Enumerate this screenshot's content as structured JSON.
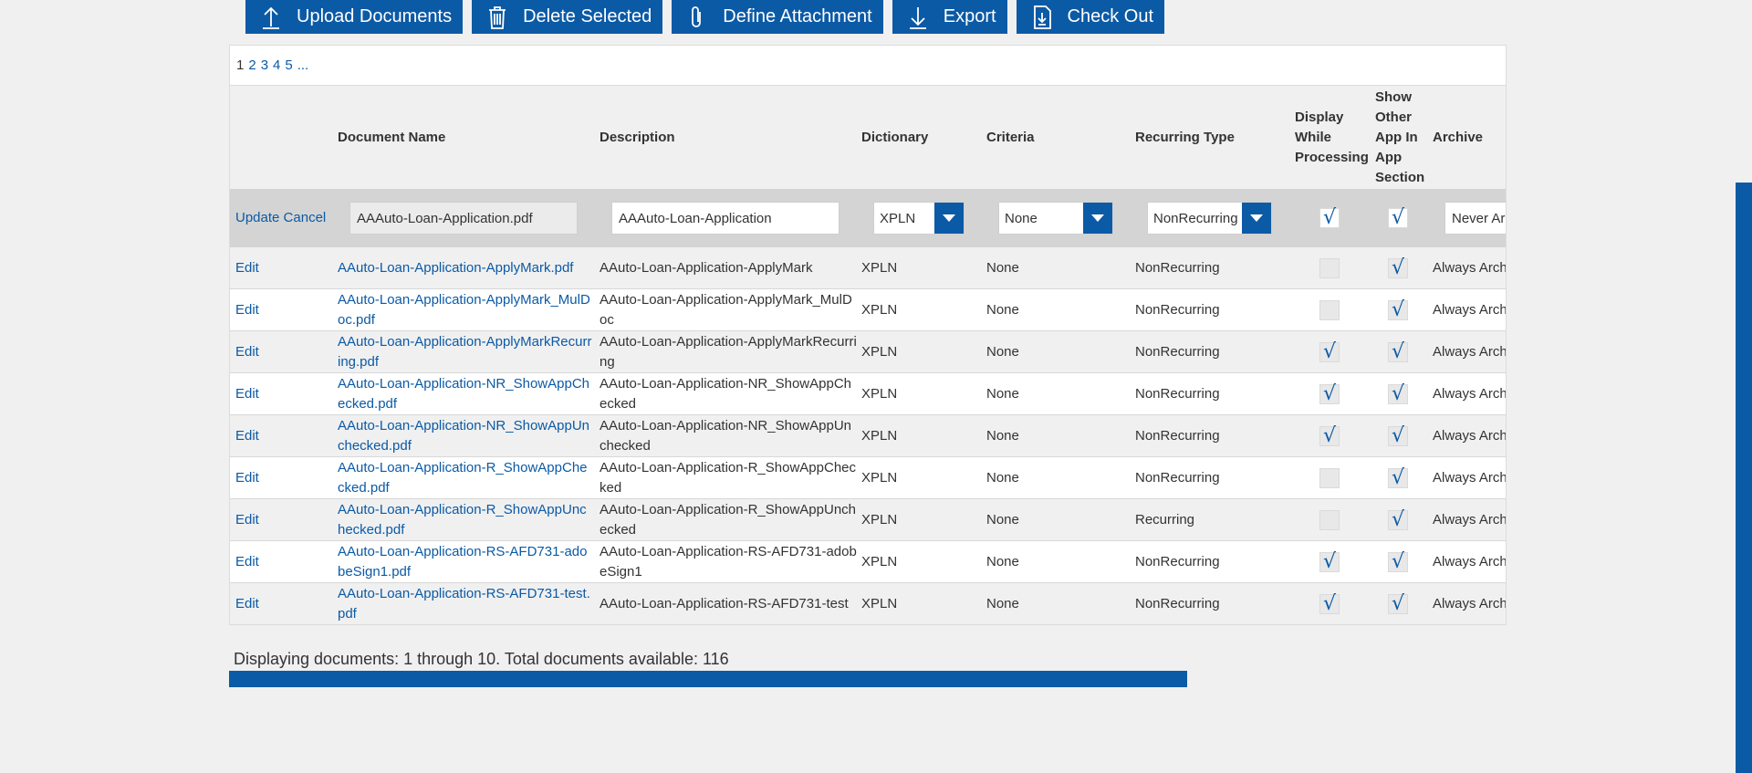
{
  "toolbar": {
    "upload": "Upload Documents",
    "delete": "Delete Selected",
    "define": "Define Attachment",
    "export": "Export",
    "checkout": "Check Out"
  },
  "pager": {
    "p1": "1",
    "p2": "2",
    "p3": "3",
    "p4": "4",
    "p5": "5",
    "more": "..."
  },
  "headers": {
    "name": "Document Name",
    "description": "Description",
    "dictionary": "Dictionary",
    "criteria": "Criteria",
    "recurring": "Recurring Type",
    "display": "Display While Processing",
    "show_other": "Show Other App In App Section",
    "archive": "Archive"
  },
  "edit_row": {
    "update": "Update",
    "cancel": "Cancel",
    "name": "AAAuto-Loan-Application.pdf",
    "description": "AAAuto-Loan-Application",
    "dictionary": "XPLN",
    "criteria": "None",
    "recurring": "NonRecurring",
    "display_checked": true,
    "show_checked": true,
    "archive": "Never Archive"
  },
  "rows": [
    {
      "edit": "Edit",
      "name": "AAuto-Loan-Application-ApplyMark.pdf",
      "desc": "AAuto-Loan-Application-ApplyMark",
      "dict": "XPLN",
      "crit": "None",
      "rec": "NonRecurring",
      "disp": false,
      "show": true,
      "arch": "Always Archive"
    },
    {
      "edit": "Edit",
      "name": "AAuto-Loan-Application-ApplyMark_MulDoc.pdf",
      "desc": "AAuto-Loan-Application-ApplyMark_MulDoc",
      "dict": "XPLN",
      "crit": "None",
      "rec": "NonRecurring",
      "disp": false,
      "show": true,
      "arch": "Always Archive"
    },
    {
      "edit": "Edit",
      "name": "AAuto-Loan-Application-ApplyMarkRecurring.pdf",
      "desc": "AAuto-Loan-Application-ApplyMarkRecurring",
      "dict": "XPLN",
      "crit": "None",
      "rec": "NonRecurring",
      "disp": true,
      "show": true,
      "arch": "Always Archive"
    },
    {
      "edit": "Edit",
      "name": "AAuto-Loan-Application-NR_ShowAppChecked.pdf",
      "desc": "AAuto-Loan-Application-NR_ShowAppChecked",
      "dict": "XPLN",
      "crit": "None",
      "rec": "NonRecurring",
      "disp": true,
      "show": true,
      "arch": "Always Archive"
    },
    {
      "edit": "Edit",
      "name": "AAuto-Loan-Application-NR_ShowAppUnchecked.pdf",
      "desc": "AAuto-Loan-Application-NR_ShowAppUnchecked",
      "dict": "XPLN",
      "crit": "None",
      "rec": "NonRecurring",
      "disp": true,
      "show": true,
      "arch": "Always Archive"
    },
    {
      "edit": "Edit",
      "name": "AAuto-Loan-Application-R_ShowAppChecked.pdf",
      "desc": "AAuto-Loan-Application-R_ShowAppChecked",
      "dict": "XPLN",
      "crit": "None",
      "rec": "NonRecurring",
      "disp": false,
      "show": true,
      "arch": "Always Archive"
    },
    {
      "edit": "Edit",
      "name": "AAuto-Loan-Application-R_ShowAppUnchecked.pdf",
      "desc": "AAuto-Loan-Application-R_ShowAppUnchecked",
      "dict": "XPLN",
      "crit": "None",
      "rec": "Recurring",
      "disp": false,
      "show": true,
      "arch": "Always Archive"
    },
    {
      "edit": "Edit",
      "name": "AAuto-Loan-Application-RS-AFD731-adobeSign1.pdf",
      "desc": "AAuto-Loan-Application-RS-AFD731-adobeSign1",
      "dict": "XPLN",
      "crit": "None",
      "rec": "NonRecurring",
      "disp": true,
      "show": true,
      "arch": "Always Archive"
    },
    {
      "edit": "Edit",
      "name": "AAuto-Loan-Application-RS-AFD731-test.pdf",
      "desc": "AAuto-Loan-Application-RS-AFD731-test",
      "dict": "XPLN",
      "crit": "None",
      "rec": "NonRecurring",
      "disp": true,
      "show": true,
      "arch": "Always Archive"
    }
  ],
  "footer": "Displaying documents: 1 through 10. Total documents available: 116",
  "colors": {
    "accent": "#0b5aa6"
  },
  "icons": {
    "upload": "upload-arrow-icon",
    "delete": "trash-icon",
    "define": "paperclip-icon",
    "export": "download-arrow-icon",
    "checkout": "document-download-icon"
  }
}
